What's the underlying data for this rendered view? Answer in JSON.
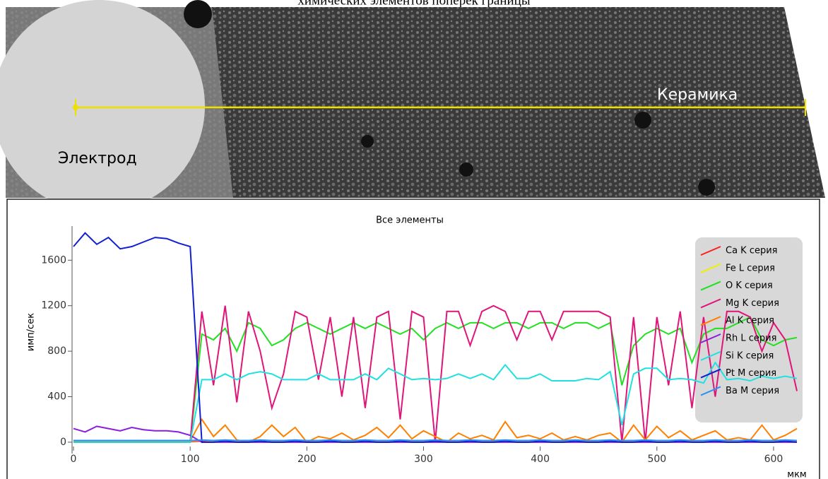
{
  "page_title": "химических элементов поперек границы",
  "image_labels": [
    "Электрод",
    "Керамика"
  ],
  "chart_data": {
    "type": "line",
    "title": "Все элементы",
    "x_label": "мкм",
    "y_label": "имп/сек",
    "xlim": [
      0,
      620
    ],
    "ylim": [
      -100,
      1900
    ],
    "xticks": [
      0,
      100,
      200,
      300,
      400,
      500,
      600
    ],
    "yticks": [
      0,
      400,
      800,
      1200,
      1600
    ],
    "legend": "right",
    "x": [
      0,
      10,
      20,
      30,
      40,
      50,
      60,
      70,
      80,
      90,
      100,
      110,
      120,
      130,
      140,
      150,
      160,
      170,
      180,
      190,
      200,
      210,
      220,
      230,
      240,
      250,
      260,
      270,
      280,
      290,
      300,
      310,
      320,
      330,
      340,
      350,
      360,
      370,
      380,
      390,
      400,
      410,
      420,
      430,
      440,
      450,
      460,
      470,
      480,
      490,
      500,
      510,
      520,
      530,
      540,
      550,
      560,
      570,
      580,
      590,
      600,
      610,
      620
    ],
    "series": [
      {
        "name": "Ca K серия",
        "color": "#ff2020",
        "values": [
          5,
          5,
          5,
          5,
          5,
          5,
          5,
          5,
          5,
          5,
          5,
          10,
          5,
          10,
          5,
          5,
          10,
          5,
          5,
          10,
          5,
          5,
          10,
          5,
          5,
          10,
          5,
          5,
          10,
          5,
          5,
          10,
          5,
          5,
          10,
          5,
          5,
          10,
          5,
          5,
          10,
          5,
          5,
          10,
          5,
          5,
          10,
          5,
          5,
          10,
          5,
          5,
          10,
          5,
          5,
          10,
          5,
          5,
          10,
          5,
          5,
          10,
          5
        ]
      },
      {
        "name": "Fe L серия",
        "color": "#f0f000",
        "values": [
          10,
          10,
          10,
          10,
          10,
          10,
          10,
          10,
          10,
          10,
          10,
          20,
          10,
          20,
          10,
          10,
          20,
          10,
          10,
          20,
          10,
          10,
          20,
          10,
          10,
          20,
          10,
          10,
          20,
          10,
          10,
          20,
          10,
          10,
          20,
          10,
          10,
          20,
          10,
          10,
          20,
          10,
          10,
          20,
          10,
          10,
          20,
          10,
          10,
          20,
          10,
          10,
          20,
          10,
          10,
          20,
          10,
          10,
          20,
          10,
          10,
          20,
          10
        ]
      },
      {
        "name": "O K серия",
        "color": "#20e020",
        "values": [
          0,
          0,
          0,
          0,
          0,
          0,
          0,
          0,
          0,
          0,
          0,
          950,
          900,
          1000,
          800,
          1050,
          1000,
          850,
          900,
          1000,
          1050,
          1000,
          950,
          1000,
          1050,
          1000,
          1050,
          1000,
          950,
          1000,
          900,
          1000,
          1050,
          1000,
          1050,
          1050,
          1000,
          1050,
          1050,
          1000,
          1050,
          1050,
          1000,
          1050,
          1050,
          1000,
          1050,
          500,
          850,
          950,
          1000,
          950,
          1000,
          700,
          950,
          1000,
          1000,
          1050,
          1100,
          900,
          850,
          900,
          920
        ]
      },
      {
        "name": "Mg K серия",
        "color": "#e0157a",
        "values": [
          0,
          0,
          0,
          0,
          0,
          0,
          0,
          0,
          0,
          0,
          0,
          1150,
          500,
          1200,
          350,
          1150,
          800,
          300,
          600,
          1150,
          1100,
          550,
          1100,
          400,
          1100,
          300,
          1100,
          1150,
          200,
          1150,
          1100,
          0,
          1150,
          1150,
          850,
          1150,
          1200,
          1150,
          900,
          1150,
          1150,
          900,
          1150,
          1150,
          1150,
          1150,
          1100,
          0,
          1100,
          0,
          1100,
          500,
          1150,
          300,
          1100,
          400,
          1150,
          1150,
          1100,
          800,
          1050,
          900,
          450
        ]
      },
      {
        "name": "Al K серия",
        "color": "#ff8000",
        "values": [
          10,
          10,
          10,
          10,
          10,
          10,
          10,
          10,
          10,
          10,
          10,
          200,
          50,
          150,
          20,
          0,
          50,
          150,
          50,
          130,
          0,
          50,
          30,
          80,
          20,
          60,
          130,
          40,
          150,
          30,
          100,
          50,
          0,
          80,
          30,
          60,
          20,
          180,
          40,
          60,
          30,
          80,
          20,
          50,
          20,
          60,
          80,
          0,
          150,
          20,
          140,
          40,
          100,
          20,
          60,
          100,
          20,
          40,
          20,
          150,
          20,
          60,
          120
        ]
      },
      {
        "name": "Rh L серия",
        "color": "#8a1ee0",
        "values": [
          120,
          90,
          140,
          120,
          100,
          130,
          110,
          100,
          100,
          90,
          60,
          0,
          0,
          0,
          0,
          0,
          0,
          0,
          0,
          0,
          0,
          0,
          0,
          0,
          0,
          0,
          0,
          0,
          0,
          0,
          0,
          0,
          0,
          0,
          0,
          0,
          0,
          0,
          0,
          0,
          0,
          0,
          0,
          0,
          0,
          0,
          0,
          0,
          0,
          0,
          0,
          0,
          0,
          0,
          0,
          0,
          0,
          0,
          0,
          0,
          0,
          0,
          0
        ]
      },
      {
        "name": "Si K серия",
        "color": "#20e0e0",
        "values": [
          0,
          0,
          0,
          0,
          0,
          0,
          0,
          0,
          0,
          0,
          0,
          550,
          550,
          600,
          550,
          600,
          620,
          600,
          550,
          550,
          550,
          600,
          550,
          550,
          550,
          600,
          550,
          650,
          600,
          550,
          560,
          550,
          560,
          600,
          560,
          600,
          550,
          680,
          560,
          560,
          600,
          540,
          540,
          540,
          560,
          550,
          620,
          150,
          600,
          650,
          650,
          550,
          560,
          550,
          520,
          700,
          550,
          560,
          540,
          580,
          560,
          580,
          560
        ]
      },
      {
        "name": "Pt M серия",
        "color": "#1020d0",
        "values": [
          1720,
          1840,
          1740,
          1800,
          1700,
          1720,
          1760,
          1800,
          1790,
          1750,
          1720,
          0,
          0,
          10,
          0,
          0,
          10,
          0,
          0,
          10,
          0,
          0,
          10,
          0,
          0,
          10,
          0,
          0,
          10,
          0,
          0,
          10,
          0,
          0,
          10,
          0,
          0,
          10,
          0,
          0,
          10,
          0,
          0,
          10,
          0,
          0,
          10,
          0,
          0,
          10,
          0,
          0,
          10,
          0,
          0,
          10,
          0,
          0,
          10,
          0,
          0,
          10,
          0
        ]
      },
      {
        "name": "Ba M серия",
        "color": "#3090f0",
        "values": [
          15,
          15,
          15,
          15,
          15,
          15,
          15,
          15,
          15,
          15,
          15,
          20,
          15,
          20,
          15,
          15,
          20,
          15,
          15,
          20,
          15,
          15,
          20,
          15,
          15,
          20,
          15,
          15,
          20,
          15,
          15,
          20,
          15,
          15,
          20,
          15,
          15,
          20,
          15,
          15,
          20,
          15,
          15,
          20,
          15,
          15,
          20,
          15,
          15,
          20,
          15,
          15,
          20,
          15,
          15,
          20,
          15,
          15,
          20,
          15,
          15,
          20,
          15
        ]
      }
    ]
  }
}
